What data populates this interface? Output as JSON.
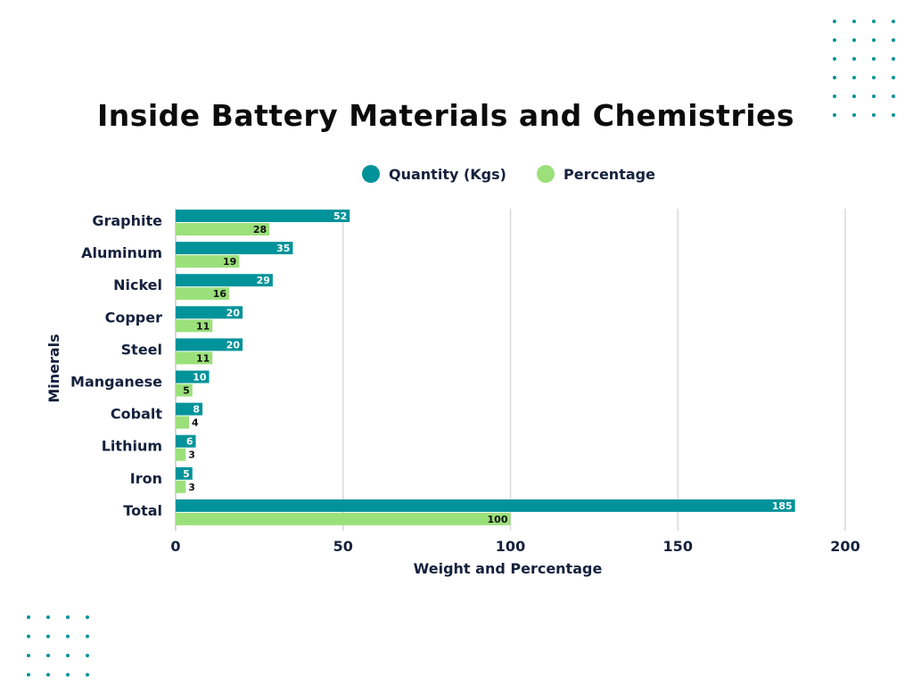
{
  "chart_data": {
    "type": "bar",
    "orientation": "horizontal",
    "title": "Inside Battery Materials and Chemistries",
    "xlabel": "Weight and Percentage",
    "ylabel": "Minerals",
    "xlim": [
      0,
      200
    ],
    "xticks": [
      0,
      50,
      100,
      150,
      200
    ],
    "grid": true,
    "legend_placement": "top",
    "categories": [
      "Graphite",
      "Aluminum",
      "Nickel",
      "Copper",
      "Steel",
      "Manganese",
      "Cobalt",
      "Lithium",
      "Iron",
      "Total"
    ],
    "series": [
      {
        "name": "Quantity (Kgs)",
        "color": "#00939A",
        "values": [
          52,
          35,
          29,
          20,
          20,
          10,
          8,
          6,
          5,
          185
        ]
      },
      {
        "name": "Percentage",
        "color": "#9BE07A",
        "values": [
          28,
          19,
          16,
          11,
          11,
          5,
          4,
          3,
          3,
          100
        ]
      }
    ]
  },
  "decoration": {
    "dot_color": "#00939A"
  }
}
